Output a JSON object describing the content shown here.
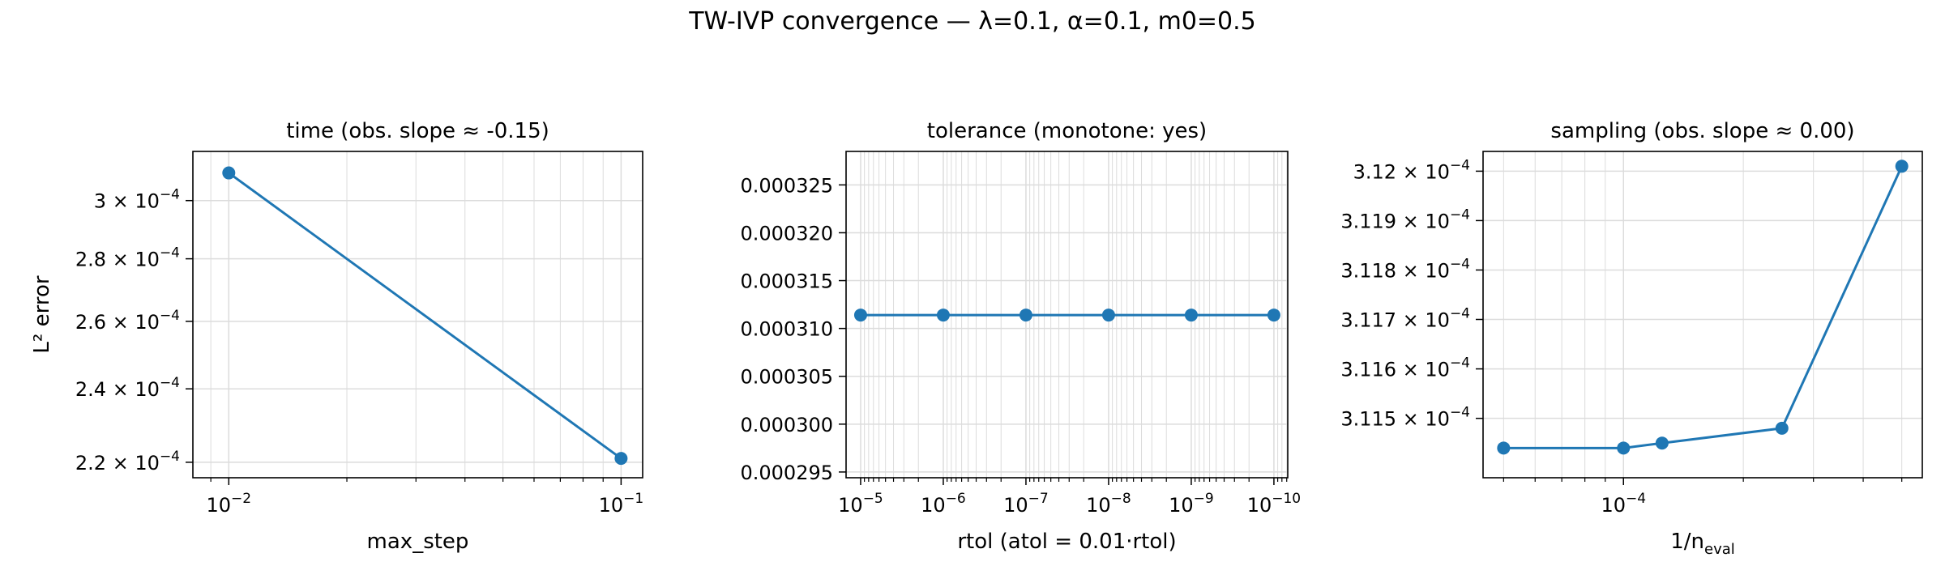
{
  "figure": {
    "suptitle": "TW-IVP convergence — λ=0.1, α=0.1, m0=0.5"
  },
  "colors": {
    "series": "#1f77b4",
    "grid": "#dcdcdc",
    "frame": "#000000"
  },
  "chart_data": [
    {
      "type": "line",
      "title": "time (obs. slope ≈ -0.15)",
      "xlabel": "max_step",
      "ylabel": "L² error",
      "xscale": "log",
      "yscale": "log",
      "x": [
        0.01,
        0.1
      ],
      "values": [
        0.00031,
        0.000221
      ],
      "xlim": [
        0.0081,
        0.1135
      ],
      "ylim": [
        0.000216,
        0.000318
      ],
      "grid": true,
      "xticks": [
        {
          "value": 0.01,
          "base": "10",
          "exp": "−2"
        },
        {
          "value": 0.1,
          "base": "10",
          "exp": "−1"
        }
      ],
      "yticks": [
        {
          "value": 0.00022,
          "mant": "2.2 × 10",
          "exp": "−4"
        },
        {
          "value": 0.00024,
          "mant": "2.4 × 10",
          "exp": "−4"
        },
        {
          "value": 0.00026,
          "mant": "2.6 × 10",
          "exp": "−4"
        },
        {
          "value": 0.00028,
          "mant": "2.8 × 10",
          "exp": "−4"
        },
        {
          "value": 0.0003,
          "mant": "3 × 10",
          "exp": "−4"
        }
      ]
    },
    {
      "type": "line",
      "title": "tolerance (monotone: yes)",
      "xlabel": "rtol (atol = 0.01·rtol)",
      "xscale": "log",
      "xinverted": true,
      "yscale": "linear",
      "x": [
        1e-05,
        1e-06,
        1e-07,
        1e-08,
        1e-09,
        1e-10
      ],
      "values": [
        0.0003114,
        0.0003114,
        0.0003114,
        0.0003114,
        0.0003114,
        0.0003114
      ],
      "xlim": [
        1.5e-05,
        6.8e-11
      ],
      "ylim": [
        0.0002944,
        0.0003285
      ],
      "grid": true,
      "xticks": [
        {
          "value": 1e-05,
          "base": "10",
          "exp": "−5"
        },
        {
          "value": 1e-06,
          "base": "10",
          "exp": "−6"
        },
        {
          "value": 1e-07,
          "base": "10",
          "exp": "−7"
        },
        {
          "value": 1e-08,
          "base": "10",
          "exp": "−8"
        },
        {
          "value": 1e-09,
          "base": "10",
          "exp": "−9"
        },
        {
          "value": 1e-10,
          "base": "10",
          "exp": "−10"
        }
      ],
      "yticks": [
        {
          "value": 0.000295,
          "label": "0.000295"
        },
        {
          "value": 0.0003,
          "label": "0.000300"
        },
        {
          "value": 0.000305,
          "label": "0.000305"
        },
        {
          "value": 0.00031,
          "label": "0.000310"
        },
        {
          "value": 0.000315,
          "label": "0.000315"
        },
        {
          "value": 0.00032,
          "label": "0.000320"
        },
        {
          "value": 0.000325,
          "label": "0.000325"
        }
      ]
    },
    {
      "type": "line",
      "title": "sampling (obs. slope ≈ 0.00)",
      "xlabel": "1/n",
      "xlabel_sub": "eval",
      "xscale": "log",
      "yscale": "log",
      "x": [
        5e-05,
        0.0001,
        0.000125,
        0.00025,
        0.0005
      ],
      "values": [
        0.00031144,
        0.00031144,
        0.00031145,
        0.00031148,
        0.00031201
      ],
      "xlim": [
        4.44e-05,
        0.000563
      ],
      "ylim": [
        0.00031138,
        0.00031204
      ],
      "grid": true,
      "xticks": [
        {
          "value": 0.0001,
          "base": "10",
          "exp": "−4"
        }
      ],
      "yticks": [
        {
          "value": 0.0003115,
          "mant": "3.115 × 10",
          "exp": "−4"
        },
        {
          "value": 0.0003116,
          "mant": "3.116 × 10",
          "exp": "−4"
        },
        {
          "value": 0.0003117,
          "mant": "3.117 × 10",
          "exp": "−4"
        },
        {
          "value": 0.0003118,
          "mant": "3.118 × 10",
          "exp": "−4"
        },
        {
          "value": 0.0003119,
          "mant": "3.119 × 10",
          "exp": "−4"
        },
        {
          "value": 0.000312,
          "mant": "3.12 × 10",
          "exp": "−4"
        }
      ]
    }
  ]
}
